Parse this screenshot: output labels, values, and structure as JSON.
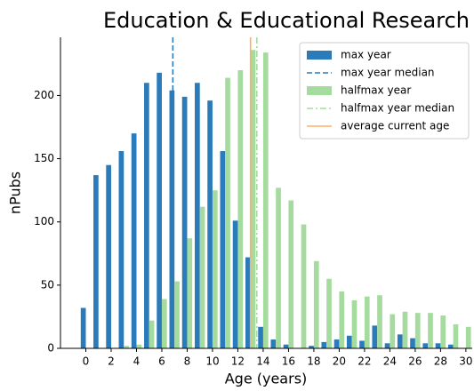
{
  "chart_data": {
    "type": "bar",
    "title": "Education & Educational Research",
    "xlabel": "Age (years)",
    "ylabel": "nPubs",
    "xlim": [
      -2,
      30.5
    ],
    "ylim": [
      0,
      246
    ],
    "xticks": [
      0,
      2,
      4,
      6,
      8,
      10,
      12,
      14,
      16,
      18,
      20,
      22,
      24,
      26,
      28,
      30
    ],
    "yticks": [
      0,
      50,
      100,
      150,
      200
    ],
    "legend": "upper right",
    "series": [
      {
        "name": "max year",
        "color": "#2b7bba",
        "x": [
          0,
          1,
          2,
          3,
          4,
          5,
          6,
          7,
          8,
          9,
          10,
          11,
          12,
          13,
          14,
          15,
          16,
          17,
          18,
          19,
          20,
          21,
          22,
          23,
          24,
          25,
          26,
          27,
          28,
          29
        ],
        "values": [
          32,
          137,
          145,
          156,
          170,
          210,
          218,
          204,
          199,
          210,
          196,
          156,
          101,
          72,
          17,
          7,
          3,
          0,
          2,
          5,
          7,
          10,
          6,
          18,
          4,
          11,
          8,
          4,
          4,
          3
        ]
      },
      {
        "name": "halfmax year",
        "color": "#a6dba0",
        "x": [
          0,
          1,
          2,
          3,
          4,
          5,
          6,
          7,
          8,
          9,
          10,
          11,
          12,
          13,
          14,
          15,
          16,
          17,
          18,
          19,
          20,
          21,
          22,
          23,
          24,
          25,
          26,
          27,
          28,
          29,
          30
        ],
        "values": [
          0,
          0,
          0,
          2,
          3,
          22,
          39,
          53,
          87,
          112,
          125,
          214,
          220,
          236,
          234,
          127,
          117,
          98,
          69,
          55,
          45,
          38,
          41,
          42,
          27,
          29,
          28,
          28,
          26,
          19,
          17
        ]
      }
    ],
    "vlines": [
      {
        "name": "max year median",
        "color": "#2b7bba",
        "x": 6.87,
        "style": "dashed"
      },
      {
        "name": "halfmax year median",
        "color": "#a6dba0",
        "x": 13.5,
        "style": "dashdot"
      },
      {
        "name": "average current age",
        "color": "#fdae6b",
        "x": 13.0,
        "style": "solid"
      }
    ]
  }
}
